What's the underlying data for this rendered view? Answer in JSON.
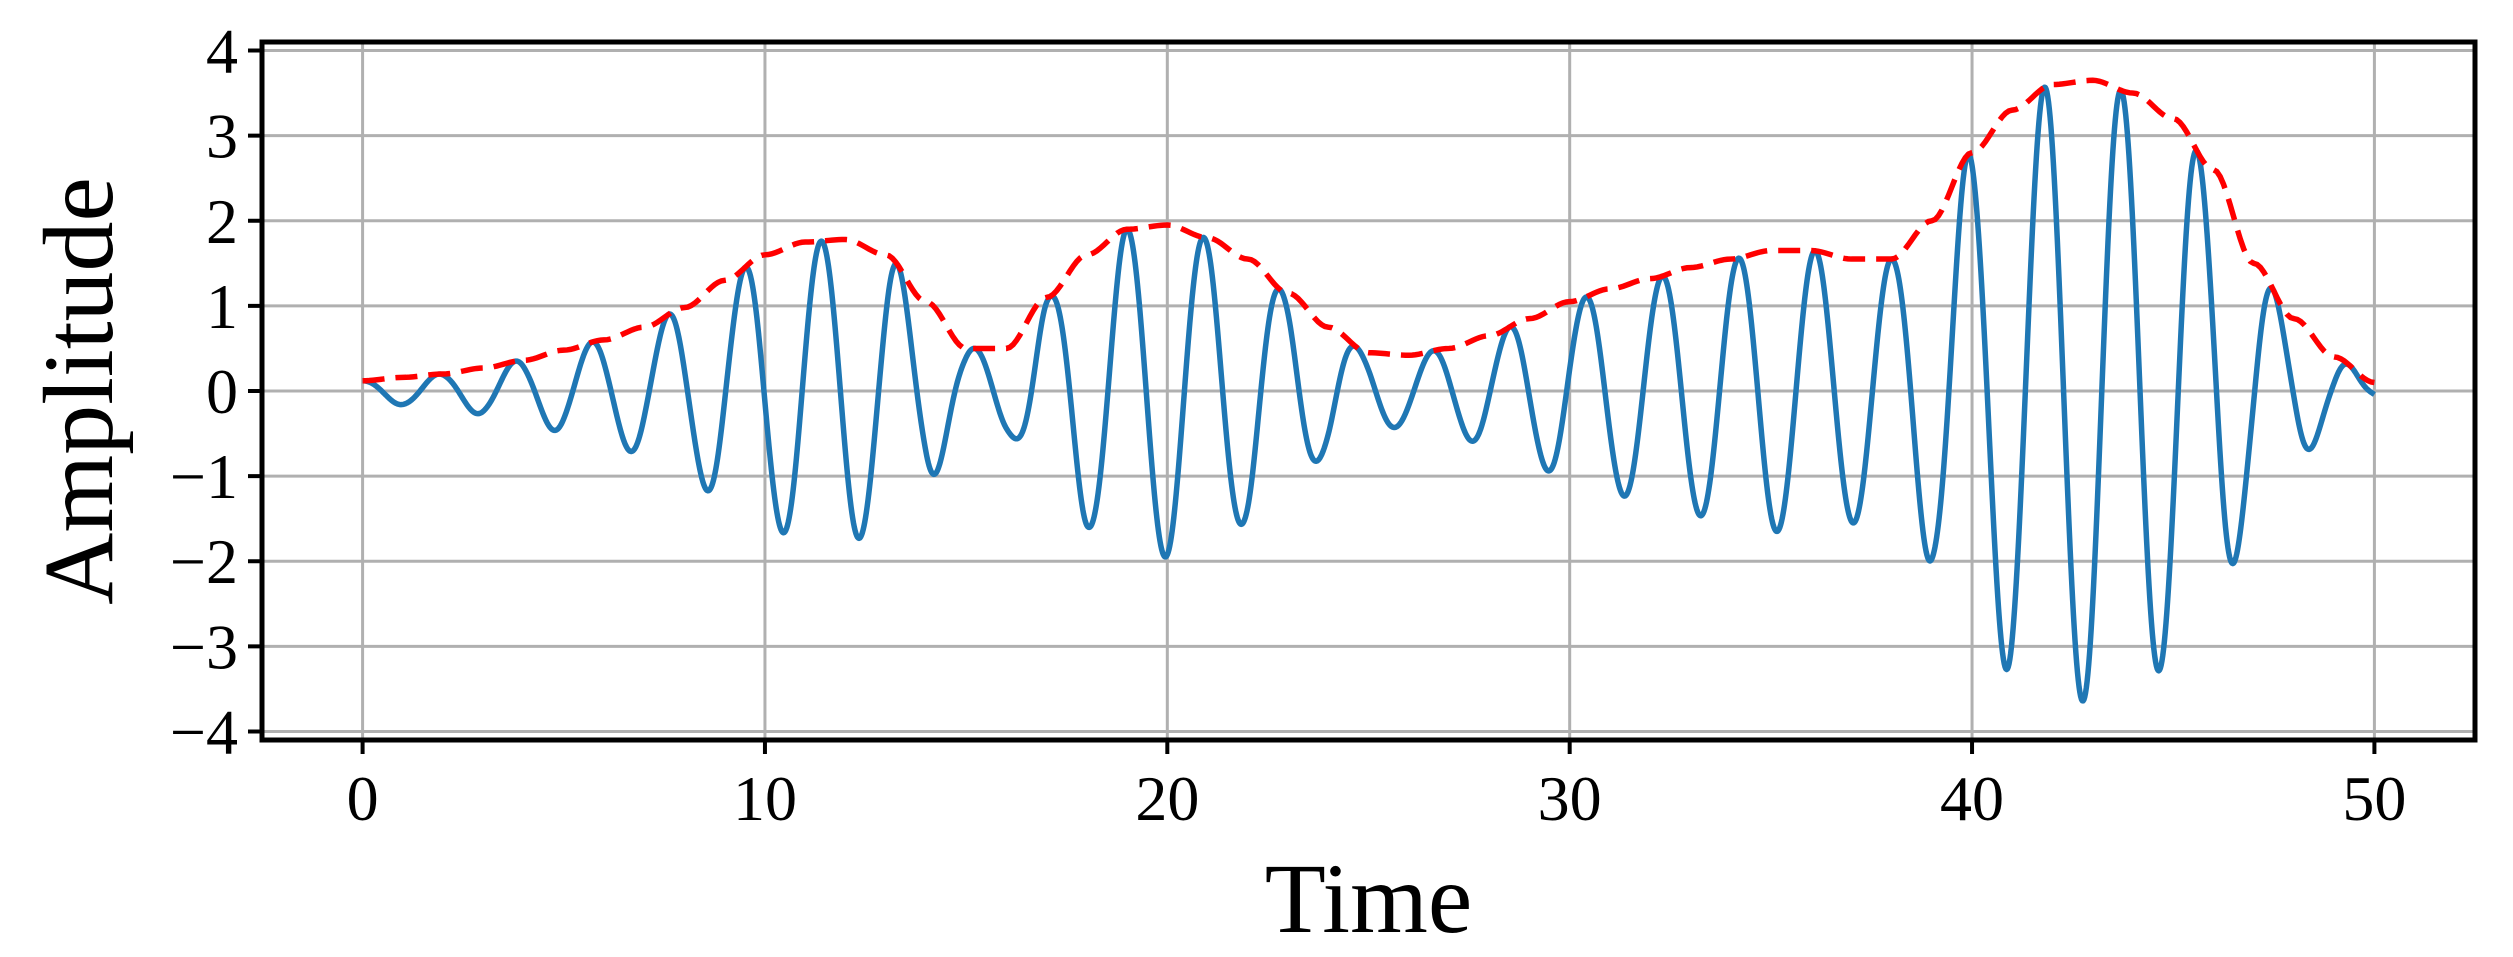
{
  "chart_data": {
    "type": "line",
    "title": "",
    "xlabel": "Time",
    "ylabel": "Amplitude",
    "xlim": [
      -2.5,
      52.5
    ],
    "ylim": [
      -4.1,
      4.1
    ],
    "xticks": [
      0,
      10,
      20,
      30,
      40,
      50
    ],
    "yticks": [
      -4,
      -3,
      -2,
      -1,
      0,
      1,
      2,
      3,
      4
    ],
    "xtick_labels": [
      "0",
      "10",
      "20",
      "30",
      "40",
      "50"
    ],
    "ytick_labels": [
      "−4",
      "−3",
      "−2",
      "−1",
      "0",
      "1",
      "2",
      "3",
      "4"
    ],
    "grid": true,
    "legend": "none",
    "series": [
      {
        "style": "solid",
        "color": "#1f77b4",
        "carrier_period": 1.9,
        "carrier_phase_start": -0.1,
        "x": [
          0,
          1,
          2,
          3,
          4,
          5,
          6,
          7,
          8,
          9,
          10,
          11,
          12,
          13,
          14,
          15,
          16,
          17,
          18,
          19,
          20,
          21,
          22,
          23,
          24,
          25,
          26,
          27,
          28,
          29,
          30,
          31,
          32,
          33,
          34,
          35,
          36,
          37,
          38,
          39,
          40,
          41,
          42,
          43,
          44,
          45,
          46,
          47,
          48,
          49,
          50
        ],
        "envelope": [
          0.12,
          0.16,
          0.2,
          0.27,
          0.36,
          0.48,
          0.6,
          0.75,
          0.98,
          1.3,
          1.6,
          1.75,
          1.78,
          1.6,
          1.05,
          0.5,
          0.5,
          1.1,
          1.6,
          1.9,
          1.95,
          1.8,
          1.55,
          1.15,
          0.75,
          0.45,
          0.42,
          0.5,
          0.65,
          0.85,
          1.05,
          1.2,
          1.32,
          1.45,
          1.55,
          1.65,
          1.65,
          1.55,
          1.55,
          2.0,
          2.8,
          3.3,
          3.6,
          3.65,
          3.5,
          3.2,
          2.6,
          1.5,
          0.85,
          0.4,
          0.1
        ]
      },
      {
        "style": "dashed",
        "color": "#ff0000",
        "x": [
          0,
          1,
          2,
          3,
          4,
          5,
          6,
          7,
          8,
          9,
          10,
          11,
          12,
          13,
          14,
          15,
          16,
          17,
          18,
          19,
          20,
          21,
          22,
          23,
          24,
          25,
          26,
          27,
          28,
          29,
          30,
          31,
          32,
          33,
          34,
          35,
          36,
          37,
          38,
          39,
          40,
          41,
          42,
          43,
          44,
          45,
          46,
          47,
          48,
          49,
          50
        ],
        "y": [
          0.12,
          0.16,
          0.2,
          0.27,
          0.36,
          0.48,
          0.6,
          0.75,
          0.98,
          1.3,
          1.6,
          1.75,
          1.78,
          1.6,
          1.05,
          0.5,
          0.5,
          1.1,
          1.6,
          1.9,
          1.95,
          1.8,
          1.55,
          1.15,
          0.75,
          0.45,
          0.42,
          0.5,
          0.65,
          0.85,
          1.05,
          1.2,
          1.32,
          1.45,
          1.55,
          1.65,
          1.65,
          1.55,
          1.55,
          2.0,
          2.8,
          3.3,
          3.6,
          3.65,
          3.5,
          3.2,
          2.6,
          1.5,
          0.85,
          0.4,
          0.1
        ]
      }
    ]
  }
}
